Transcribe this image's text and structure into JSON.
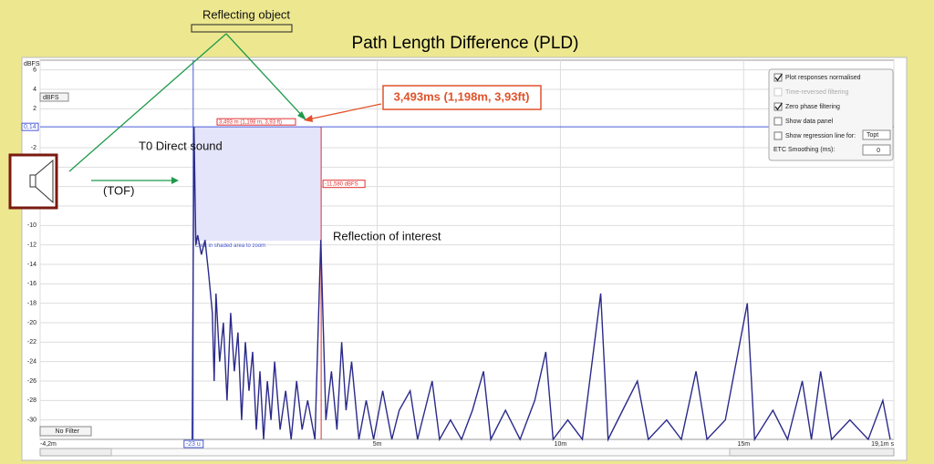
{
  "annotations": {
    "reflecting_object": "Reflecting object",
    "title": "Path Length Difference (PLD)",
    "pld_value": "3,493ms (1,198m, 3,93ft)",
    "direct_sound": "T0 Direct sound",
    "tof": "(TOF)",
    "reflection": "Reflection of interest"
  },
  "chart_data": {
    "type": "line",
    "y_label": "dBFS",
    "color": "#2b2a8a",
    "grid": true,
    "xlim": [
      -4.2,
      19.1
    ],
    "ylim": [
      -32,
      7
    ],
    "xticks": [
      {
        "value": -4.2,
        "label": "-4,2m"
      },
      {
        "value": 5,
        "label": "5m"
      },
      {
        "value": 10,
        "label": "10m"
      },
      {
        "value": 15,
        "label": "15m"
      },
      {
        "value": 19.1,
        "label": "19,1m s"
      }
    ],
    "yticks": [
      6,
      4,
      2,
      -2,
      -4,
      -6,
      -8,
      -10,
      -12,
      -14,
      -16,
      -18,
      -20,
      -22,
      -24,
      -26,
      -28,
      -30
    ],
    "x": [
      -0.05,
      0,
      0.05,
      0.1,
      0.2,
      0.3,
      0.4,
      0.5,
      0.55,
      0.6,
      0.7,
      0.8,
      0.9,
      1.0,
      1.1,
      1.2,
      1.3,
      1.4,
      1.5,
      1.6,
      1.7,
      1.8,
      1.9,
      2.0,
      2.1,
      2.2,
      2.35,
      2.5,
      2.65,
      2.8,
      2.95,
      3.1,
      3.3,
      3.46,
      3.6,
      3.75,
      3.9,
      4.03,
      4.15,
      4.3,
      4.5,
      4.7,
      4.9,
      5.15,
      5.4,
      5.6,
      5.9,
      6.1,
      6.3,
      6.5,
      6.7,
      7.0,
      7.3,
      7.6,
      7.9,
      8.1,
      8.5,
      8.9,
      9.3,
      9.6,
      9.8,
      10.2,
      10.6,
      11.1,
      11.3,
      11.7,
      12.1,
      12.4,
      12.9,
      13.3,
      13.7,
      14.0,
      14.5,
      15.1,
      15.3,
      15.8,
      16.2,
      16.6,
      16.85,
      17.1,
      17.4,
      17.9,
      18.4,
      18.8,
      19.0
    ],
    "values": [
      -32,
      0.14,
      -12,
      -11,
      -13,
      -11.5,
      -15,
      -19,
      -26,
      -17,
      -24,
      -20,
      -28,
      -19,
      -25,
      -21,
      -30,
      -22,
      -27,
      -23,
      -31,
      -25,
      -32,
      -26,
      -30,
      -24,
      -31,
      -27,
      -32,
      -26,
      -31,
      -28,
      -32,
      -11.5,
      -30,
      -25,
      -31,
      -22,
      -29,
      -24,
      -32,
      -28,
      -32,
      -27,
      -32,
      -29,
      -27,
      -32,
      -29,
      -26,
      -32,
      -30,
      -32,
      -29,
      -25,
      -32,
      -29,
      -32,
      -28,
      -23,
      -32,
      -30,
      -32,
      -17,
      -32,
      -29,
      -26,
      -32,
      -30,
      -32,
      -25,
      -32,
      -30,
      -18,
      -32,
      -29,
      -32,
      -26,
      -32,
      -25,
      -32,
      -30,
      -32,
      -28,
      -32
    ]
  },
  "cursor": {
    "start": {
      "value": -0.023,
      "label": "-23 u"
    },
    "delay": 3.493,
    "delay_label": "3,493 m (1,198 m, 3,93 ft)",
    "level_top": {
      "value": 0.14,
      "label": "0,14"
    },
    "level_bottom": {
      "value": -11.58,
      "label": "-11,580 dBFS"
    },
    "hint": "Click in shaded area to zoom"
  },
  "controls": {
    "units": "dBFS",
    "filter": "No Filter",
    "options": [
      {
        "label": "Plot responses normalised",
        "checked": true,
        "enabled": true
      },
      {
        "label": "Time-reversed filtering",
        "checked": false,
        "enabled": false
      },
      {
        "label": "Zero phase filtering",
        "checked": true,
        "enabled": true
      },
      {
        "label": "Show data panel",
        "checked": false,
        "enabled": true
      },
      {
        "label": "Show regression line for:",
        "checked": false,
        "enabled": true
      }
    ],
    "regression_choice": "Topt",
    "smoothing_label": "ETC Smoothing (ms):",
    "smoothing_value": "0"
  }
}
